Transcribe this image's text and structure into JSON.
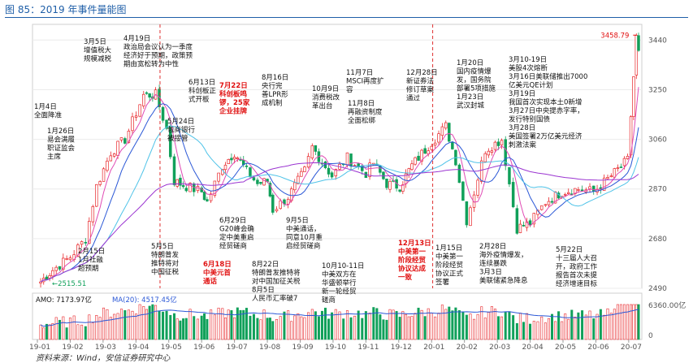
{
  "figure_title": "图 85：2019 年事件量能图",
  "source_note": "资料来源：Wind，安信证券研究中心",
  "colors": {
    "up": "#e8262a",
    "down": "#11a05a",
    "ma_pink": "#e04ab4",
    "ma_blue": "#2a57d6",
    "ma_cyan": "#4fc3e8",
    "ma_purple": "#9b35d1",
    "vol_ma": "#2a57d6",
    "separator": "#e03030"
  },
  "chart_data": {
    "type": "line",
    "title": "图 85：2019 年事件量能图",
    "y_ticks": [
      2490,
      2680,
      2870,
      3060,
      3250,
      3440
    ],
    "ylim": [
      2490,
      3500
    ],
    "x_ticks": [
      "19-01",
      "19-02",
      "19-03",
      "19-04",
      "19-05",
      "19-06",
      "19-07",
      "19-08",
      "19-09",
      "19-10",
      "19-11",
      "19-12",
      "20-01",
      "20-02",
      "20-03",
      "20-04",
      "20-05",
      "20-06",
      "20-07"
    ],
    "price_series": [
      [
        "19-01-04",
        2515
      ],
      [
        "19-01-15",
        2560
      ],
      [
        "19-01-31",
        2610
      ],
      [
        "19-02-15",
        2680
      ],
      [
        "19-02-25",
        2880
      ],
      [
        "19-03-08",
        3010
      ],
      [
        "19-03-21",
        3060
      ],
      [
        "19-04-08",
        3230
      ],
      [
        "19-04-19",
        3230
      ],
      [
        "19-04-29",
        3100
      ],
      [
        "19-05-06",
        2900
      ],
      [
        "19-05-17",
        2880
      ],
      [
        "19-05-31",
        2860
      ],
      [
        "19-06-06",
        2820
      ],
      [
        "19-06-20",
        2960
      ],
      [
        "19-07-01",
        3010
      ],
      [
        "19-07-12",
        2940
      ],
      [
        "19-07-22",
        2890
      ],
      [
        "19-07-31",
        2900
      ],
      [
        "19-08-06",
        2790
      ],
      [
        "19-08-20",
        2840
      ],
      [
        "19-09-05",
        2940
      ],
      [
        "19-09-12",
        3030
      ],
      [
        "19-09-30",
        2920
      ],
      [
        "19-10-14",
        2990
      ],
      [
        "19-10-31",
        2930
      ],
      [
        "19-11-08",
        2970
      ],
      [
        "19-11-20",
        2890
      ],
      [
        "19-12-02",
        2880
      ],
      [
        "19-12-13",
        2960
      ],
      [
        "19-12-31",
        3050
      ],
      [
        "20-01-14",
        3110
      ],
      [
        "20-01-23",
        2980
      ],
      [
        "20-02-03",
        2750
      ],
      [
        "20-02-20",
        3020
      ],
      [
        "20-03-05",
        3060
      ],
      [
        "20-03-19",
        2720
      ],
      [
        "20-03-31",
        2740
      ],
      [
        "20-04-15",
        2820
      ],
      [
        "20-04-30",
        2860
      ],
      [
        "20-05-15",
        2870
      ],
      [
        "20-05-29",
        2860
      ],
      [
        "20-06-15",
        2920
      ],
      [
        "20-06-30",
        2980
      ],
      [
        "20-07-03",
        3150
      ],
      [
        "20-07-08",
        3450
      ],
      [
        "20-07-10",
        3400
      ]
    ],
    "price_high_label": "3458.79",
    "price_low_label": "2515.51",
    "volume_panel": {
      "amo_label": "AMO: 7173.97亿",
      "ma20_label": "MA(20): 4517.45亿",
      "y_ticks": [
        "6360.00亿",
        "0"
      ]
    },
    "annotations": [
      {
        "date": "19-01-04",
        "text": [
          "1月4日",
          "全面降准"
        ],
        "red": false
      },
      {
        "date": "19-01-26",
        "text": [
          "1月26日",
          "易会满履",
          "职证监会",
          "主席"
        ],
        "red": false
      },
      {
        "date": "19-02-15",
        "text": [
          "2月15日",
          "1月社融",
          "超预期"
        ],
        "red": false
      },
      {
        "date": "19-03-05",
        "text": [
          "3月5日",
          "增值税大",
          "规模减税"
        ],
        "red": false
      },
      {
        "date": "19-04-19",
        "text": [
          "4月19日",
          "政治局会议认为一季度",
          "经济好于预期，政策预",
          "期由宽松转为中性"
        ],
        "red": false
      },
      {
        "date": "19-05-05",
        "text": [
          "5月5日",
          "特朗普发",
          "推特将对",
          "中国征税"
        ],
        "red": false
      },
      {
        "date": "19-05-24",
        "text": [
          "5月24日",
          "包商银行",
          "被接管"
        ],
        "red": false
      },
      {
        "date": "19-06-13",
        "text": [
          "6月13日",
          "科创板正",
          "式开板"
        ],
        "red": false
      },
      {
        "date": "19-06-18",
        "text": [
          "6月18日",
          "中美元首",
          "通话"
        ],
        "red": true
      },
      {
        "date": "19-06-29",
        "text": [
          "6月29日",
          "G20峰会确",
          "定中美重启",
          "经贸磋商"
        ],
        "red": false
      },
      {
        "date": "19-07-22",
        "text": [
          "7月22日",
          "科创板鸣",
          "锣，25家",
          "企业挂牌"
        ],
        "red": true
      },
      {
        "date": "19-08-16",
        "text": [
          "8月16日",
          "央行完",
          "善LPR形",
          "成机制"
        ],
        "red": false
      },
      {
        "date": "19-08-22",
        "text": [
          "8月22日",
          "特朗普发推特将",
          "对中国加征关税",
          "8月5日",
          "人民币汇率破7"
        ],
        "red": false
      },
      {
        "date": "19-09-05",
        "text": [
          "9月5日",
          "中美通话，",
          "同意10月重",
          "启经贸磋商"
        ],
        "red": false
      },
      {
        "date": "19-10-09",
        "text": [
          "10月9日",
          "消费税改",
          "革出台"
        ],
        "red": false
      },
      {
        "date": "19-10-10",
        "text": [
          "10月10-11日",
          "中美双方在",
          "华盛顿举行",
          "新一轮经贸",
          "磋商"
        ],
        "red": false
      },
      {
        "date": "19-11-07",
        "text": [
          "11月7日",
          "MSCI再度扩",
          "容"
        ],
        "red": false
      },
      {
        "date": "19-11-08",
        "text": [
          "11月8日",
          "再融资制度",
          "全面松绑"
        ],
        "red": false
      },
      {
        "date": "19-12-13",
        "text": [
          "12月13日",
          "中美第一",
          "阶段经贸",
          "协议达成",
          "一致"
        ],
        "red": true
      },
      {
        "date": "19-12-28",
        "text": [
          "12月28日",
          "新证券法",
          "修订草案",
          "通过"
        ],
        "red": false
      },
      {
        "date": "20-01-15",
        "text": [
          "1月15日",
          "中美第一",
          "阶段经贸",
          "协议正式",
          "签署"
        ],
        "red": false
      },
      {
        "date": "20-01-20",
        "text": [
          "1月20日",
          "国内疫情爆",
          "发，国务院",
          "部署5项措施",
          "1月23日",
          "武汉封城"
        ],
        "red": false
      },
      {
        "date": "20-02-28",
        "text": [
          "2月28日",
          "海外疫情爆发，",
          "连续暴跌",
          "3月3日",
          "美联储紧急降息"
        ],
        "red": false
      },
      {
        "date": "20-03-10",
        "text": [
          "3月10-19日",
          "美股4次熔断",
          "3月16日美联储推出7000",
          "亿美元QE计划",
          "3月19日",
          "我国首次实现本土0新增",
          "3月27日中央提赤字率，",
          "发行特别国债",
          "3月28日",
          "美国签署2万亿美元经济",
          "刺激法案"
        ],
        "red": false
      },
      {
        "date": "20-05-22",
        "text": [
          "5月22日",
          "十三届人大召",
          "开，政府工作",
          "报告首次未提",
          "经济增速目标"
        ],
        "red": false
      }
    ]
  }
}
